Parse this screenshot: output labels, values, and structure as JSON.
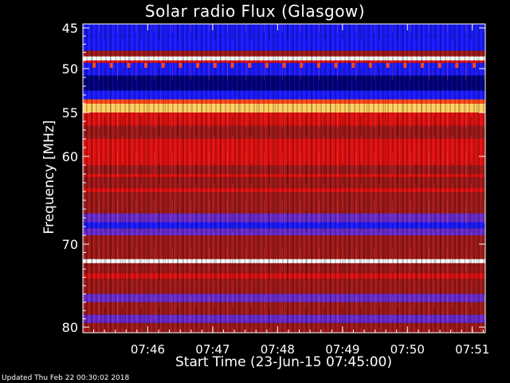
{
  "chart_data": {
    "type": "heatmap",
    "title": "Solar radio Flux (Glasgow)",
    "xlabel": "Start Time (23-Jun-15 07:45:00)",
    "ylabel": "Frequency [MHz]",
    "x_tick_labels": [
      "07:46",
      "07:47",
      "07:48",
      "07:49",
      "07:50",
      "07:51"
    ],
    "x_tick_minutes": [
      1,
      2,
      3,
      4,
      5,
      6
    ],
    "xlim_minutes": [
      0,
      6.2
    ],
    "y_tick_labels": [
      "45",
      "50",
      "55",
      "60",
      "70",
      "80"
    ],
    "y_tick_values": [
      45,
      50,
      55,
      60,
      70,
      80
    ],
    "ylim": [
      44.4,
      80.5
    ],
    "y_direction": "increasing-downward",
    "colormap": [
      "#00007f",
      "#1a1aff",
      "#6a2ad0",
      "#a01818",
      "#e01010",
      "#ff4a1a",
      "#ffd060",
      "#ffffff"
    ],
    "frequency_bands": [
      {
        "from": 44.4,
        "to": 46.0,
        "level": 1
      },
      {
        "from": 46.0,
        "to": 47.8,
        "level": 1
      },
      {
        "from": 47.8,
        "to": 48.5,
        "level": 3
      },
      {
        "from": 48.5,
        "to": 49.0,
        "level": 7
      },
      {
        "from": 49.0,
        "to": 49.3,
        "level": 4
      },
      {
        "from": 49.3,
        "to": 50.8,
        "level": 1
      },
      {
        "from": 50.8,
        "to": 52.5,
        "level": 0
      },
      {
        "from": 52.5,
        "to": 53.5,
        "level": 1
      },
      {
        "from": 53.5,
        "to": 54.0,
        "level": 5
      },
      {
        "from": 54.0,
        "to": 55.0,
        "level": 6
      },
      {
        "from": 55.0,
        "to": 56.5,
        "level": 4
      },
      {
        "from": 56.5,
        "to": 58.0,
        "level": 3
      },
      {
        "from": 58.0,
        "to": 61.0,
        "level": 4
      },
      {
        "from": 61.0,
        "to": 62.0,
        "level": 3
      },
      {
        "from": 62.0,
        "to": 62.4,
        "level": 4
      },
      {
        "from": 62.4,
        "to": 63.6,
        "level": 3
      },
      {
        "from": 63.6,
        "to": 64.1,
        "level": 4
      },
      {
        "from": 64.1,
        "to": 66.5,
        "level": 3
      },
      {
        "from": 66.5,
        "to": 67.5,
        "level": 2
      },
      {
        "from": 67.5,
        "to": 68.2,
        "level": 1
      },
      {
        "from": 68.2,
        "to": 69.0,
        "level": 2
      },
      {
        "from": 69.0,
        "to": 71.8,
        "level": 3
      },
      {
        "from": 71.8,
        "to": 72.3,
        "level": 7
      },
      {
        "from": 72.3,
        "to": 73.5,
        "level": 3
      },
      {
        "from": 73.5,
        "to": 74.2,
        "level": 4
      },
      {
        "from": 74.2,
        "to": 76.0,
        "level": 3
      },
      {
        "from": 76.0,
        "to": 77.0,
        "level": 2
      },
      {
        "from": 77.0,
        "to": 78.5,
        "level": 3
      },
      {
        "from": 78.5,
        "to": 79.5,
        "level": 2
      },
      {
        "from": 79.5,
        "to": 80.5,
        "level": 3
      }
    ],
    "periodic_spikes": {
      "frequency": 49.6,
      "level": 5,
      "count": 23
    }
  },
  "footer": {
    "updated": "Updated Thu Feb 22 00:30:02 2018"
  }
}
